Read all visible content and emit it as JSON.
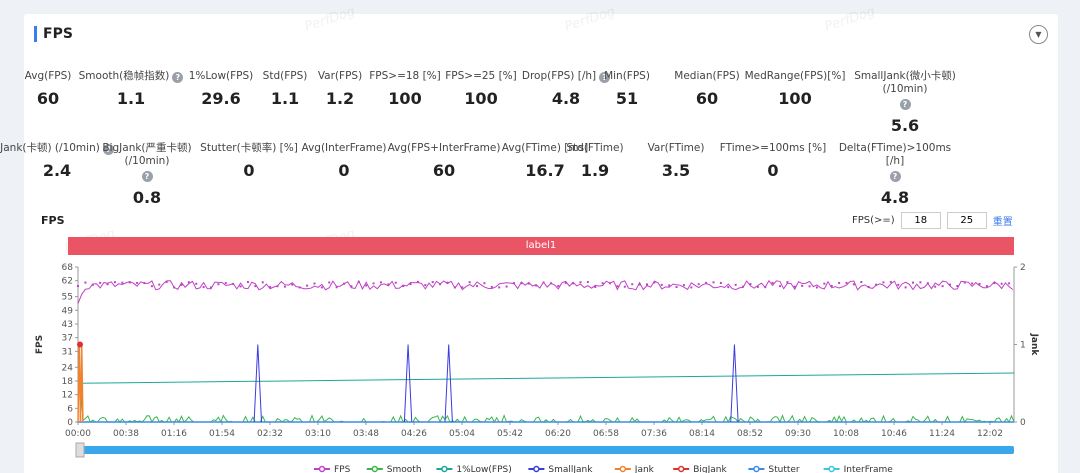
{
  "panel": {
    "title": "FPS",
    "collapse_icon": "chevron-down-icon"
  },
  "watermark": "PerfDog",
  "stats_row1": [
    {
      "label": "Avg(FPS)",
      "value": "60",
      "help": false
    },
    {
      "label": "Smooth(稳帧指数)",
      "value": "1.1",
      "help": true
    },
    {
      "label": "1%Low(FPS)",
      "value": "29.6",
      "help": false
    },
    {
      "label": "Std(FPS)",
      "value": "1.1",
      "help": false
    },
    {
      "label": "Var(FPS)",
      "value": "1.2",
      "help": false
    },
    {
      "label": "FPS>=18 [%]",
      "value": "100",
      "help": false
    },
    {
      "label": "FPS>=25 [%]",
      "value": "100",
      "help": false
    },
    {
      "label": "Drop(FPS) [/h]",
      "value": "4.8",
      "help": true
    },
    {
      "label": "Min(FPS)",
      "value": "51",
      "help": false
    },
    {
      "label": "Median(FPS)",
      "value": "60",
      "help": false
    },
    {
      "label": "MedRange(FPS)[%]",
      "value": "100",
      "help": false
    },
    {
      "label": "SmallJank(微小卡顿) (/10min)",
      "value": "5.6",
      "help": true
    }
  ],
  "stats_row2": [
    {
      "label": "Jank(卡顿) (/10min)",
      "value": "2.4",
      "help": true
    },
    {
      "label": "BigJank(严重卡顿) (/10min)",
      "value": "0.8",
      "help": true
    },
    {
      "label": "Stutter(卡顿率) [%]",
      "value": "0",
      "help": false
    },
    {
      "label": "Avg(InterFrame)",
      "value": "0",
      "help": false
    },
    {
      "label": "Avg(FPS+InterFrame)",
      "value": "60",
      "help": false
    },
    {
      "label": "Avg(FTime) [ms]",
      "value": "16.7",
      "help": false
    },
    {
      "label": "Std(FTime)",
      "value": "1.9",
      "help": false
    },
    {
      "label": "Var(FTime)",
      "value": "3.5",
      "help": false
    },
    {
      "label": "FTime>=100ms [%]",
      "value": "0",
      "help": false
    },
    {
      "label": "Delta(FTime)>100ms [/h]",
      "value": "4.8",
      "help": true
    }
  ],
  "fps_threshold": {
    "label": "FPS(>=)",
    "value1": "18",
    "value2": "25",
    "reset": "重置"
  },
  "chart_data": {
    "type": "line",
    "title": "FPS",
    "label_bar": "label1",
    "ylabel": "FPS",
    "y2label": "Jank",
    "ylim": [
      0,
      68
    ],
    "y2lim": [
      0,
      2
    ],
    "yticks": [
      0,
      6,
      12,
      18,
      24,
      31,
      37,
      43,
      49,
      55,
      62,
      68
    ],
    "y2ticks": [
      0,
      1,
      2
    ],
    "duration_s": 760,
    "xticks": [
      "00:00",
      "00:38",
      "01:16",
      "01:54",
      "02:32",
      "03:10",
      "03:48",
      "04:26",
      "05:04",
      "05:42",
      "06:20",
      "06:58",
      "07:36",
      "08:14",
      "08:52",
      "09:30",
      "10:08",
      "10:46",
      "11:24",
      "12:02"
    ],
    "series": [
      {
        "name": "FPS",
        "color": "#c040c8",
        "baseline": 60,
        "range": [
          58,
          62
        ],
        "dips": [
          {
            "t": 1,
            "v": 52
          },
          {
            "t": 2,
            "v": 55
          },
          {
            "t": 3,
            "v": 51
          },
          {
            "t": 4,
            "v": 56
          }
        ]
      },
      {
        "name": "Smooth",
        "color": "#3bb54a",
        "baseline": 0,
        "range": [
          0,
          3
        ],
        "spikes": [
          {
            "t": 1,
            "v": 12
          },
          {
            "t": 2,
            "v": 18
          }
        ]
      },
      {
        "name": "1%Low(FPS)",
        "color": "#1aa99a",
        "start": 17,
        "end": 21.5
      },
      {
        "name": "SmallJank",
        "color": "#3b3be0",
        "axis": "right",
        "spikes_t": [
          146,
          268,
          301,
          533
        ],
        "spike_value": 1
      },
      {
        "name": "Jank",
        "color": "#f0822e",
        "axis": "right",
        "spikes_t": [
          1,
          3
        ],
        "spike_value": 1
      },
      {
        "name": "BigJank",
        "color": "#e03030",
        "axis": "right",
        "spikes_t": [
          0
        ],
        "spike_value": 1
      },
      {
        "name": "Stutter",
        "color": "#3a8ce8",
        "constant": 0
      },
      {
        "name": "InterFrame",
        "color": "#38c8e0",
        "constant": 0
      }
    ]
  }
}
